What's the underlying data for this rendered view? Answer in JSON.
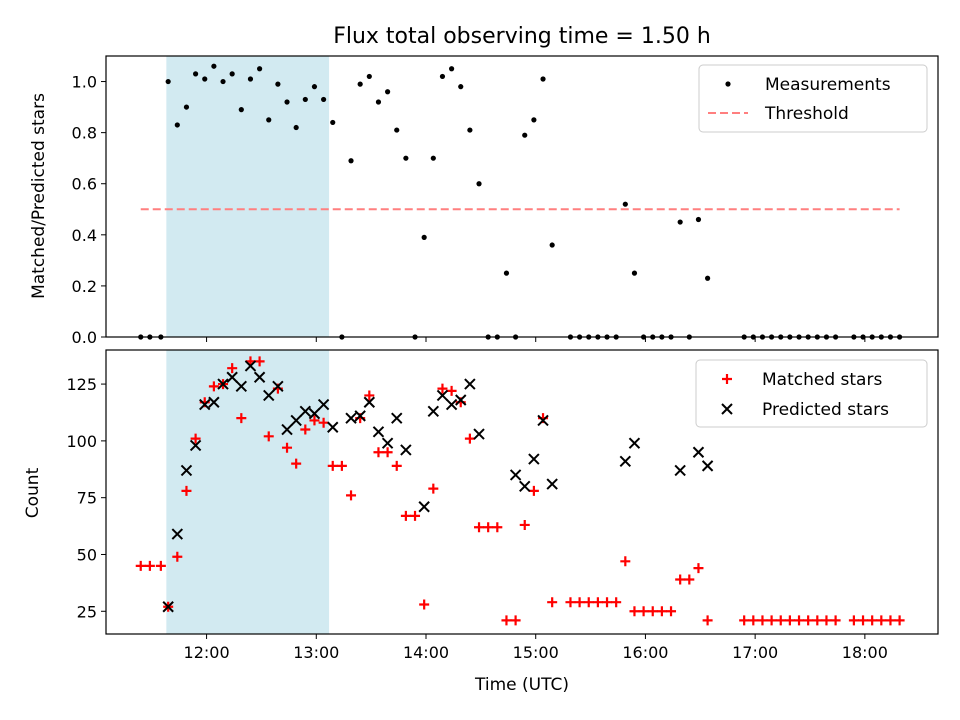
{
  "chart_data": [
    {
      "type": "scatter",
      "title": "Flux total observing time = 1.50 h",
      "xlabel": "",
      "ylabel": "Matched/Predicted stars",
      "xlim": [
        "11:05",
        "18:40"
      ],
      "ylim": [
        0,
        1.1
      ],
      "yticks": [
        0.0,
        0.2,
        0.4,
        0.6,
        0.8,
        1.0
      ],
      "ytick_labels": [
        "0.0",
        "0.2",
        "0.4",
        "0.6",
        "0.8",
        "1.0"
      ],
      "shaded_span": [
        "11:38",
        "13:07"
      ],
      "legend_position": "upper right",
      "series": [
        {
          "name": "Measurements",
          "marker": "dot",
          "color": "#000000",
          "points": [
            [
              "11:24",
              0.0
            ],
            [
              "11:29",
              0.0
            ],
            [
              "11:35",
              0.0
            ],
            [
              "11:39",
              1.0
            ],
            [
              "11:44",
              0.83
            ],
            [
              "11:49",
              0.9
            ],
            [
              "11:54",
              1.03
            ],
            [
              "11:59",
              1.01
            ],
            [
              "12:04",
              1.06
            ],
            [
              "12:09",
              1.0
            ],
            [
              "12:14",
              1.03
            ],
            [
              "12:19",
              0.89
            ],
            [
              "12:24",
              1.01
            ],
            [
              "12:29",
              1.05
            ],
            [
              "12:34",
              0.85
            ],
            [
              "12:39",
              0.99
            ],
            [
              "12:44",
              0.92
            ],
            [
              "12:49",
              0.82
            ],
            [
              "12:54",
              0.93
            ],
            [
              "12:59",
              0.98
            ],
            [
              "13:04",
              0.93
            ],
            [
              "13:09",
              0.84
            ],
            [
              "13:14",
              0.0
            ],
            [
              "13:19",
              0.69
            ],
            [
              "13:24",
              0.99
            ],
            [
              "13:29",
              1.02
            ],
            [
              "13:34",
              0.92
            ],
            [
              "13:39",
              0.96
            ],
            [
              "13:44",
              0.81
            ],
            [
              "13:49",
              0.7
            ],
            [
              "13:54",
              0.0
            ],
            [
              "13:59",
              0.39
            ],
            [
              "14:04",
              0.7
            ],
            [
              "14:09",
              1.02
            ],
            [
              "14:14",
              1.05
            ],
            [
              "14:19",
              0.98
            ],
            [
              "14:24",
              0.81
            ],
            [
              "14:29",
              0.6
            ],
            [
              "14:34",
              0.0
            ],
            [
              "14:39",
              0.0
            ],
            [
              "14:44",
              0.25
            ],
            [
              "14:49",
              0.0
            ],
            [
              "14:54",
              0.79
            ],
            [
              "14:59",
              0.85
            ],
            [
              "15:04",
              1.01
            ],
            [
              "15:09",
              0.36
            ],
            [
              "15:19",
              0.0
            ],
            [
              "15:24",
              0.0
            ],
            [
              "15:29",
              0.0
            ],
            [
              "15:34",
              0.0
            ],
            [
              "15:39",
              0.0
            ],
            [
              "15:44",
              0.0
            ],
            [
              "15:49",
              0.52
            ],
            [
              "15:54",
              0.25
            ],
            [
              "15:59",
              0.0
            ],
            [
              "16:04",
              0.0
            ],
            [
              "16:09",
              0.0
            ],
            [
              "16:14",
              0.0
            ],
            [
              "16:19",
              0.45
            ],
            [
              "16:24",
              0.0
            ],
            [
              "16:29",
              0.46
            ],
            [
              "16:34",
              0.23
            ],
            [
              "16:54",
              0.0
            ],
            [
              "16:59",
              0.0
            ],
            [
              "17:04",
              0.0
            ],
            [
              "17:09",
              0.0
            ],
            [
              "17:14",
              0.0
            ],
            [
              "17:19",
              0.0
            ],
            [
              "17:24",
              0.0
            ],
            [
              "17:29",
              0.0
            ],
            [
              "17:34",
              0.0
            ],
            [
              "17:39",
              0.0
            ],
            [
              "17:44",
              0.0
            ],
            [
              "17:54",
              0.0
            ],
            [
              "17:59",
              0.0
            ],
            [
              "18:04",
              0.0
            ],
            [
              "18:09",
              0.0
            ],
            [
              "18:14",
              0.0
            ],
            [
              "18:19",
              0.0
            ]
          ]
        },
        {
          "name": "Threshold",
          "line": "dashed",
          "color": "#ff7f7f",
          "points": [
            [
              "11:24",
              0.5
            ],
            [
              "18:19",
              0.5
            ]
          ]
        }
      ]
    },
    {
      "type": "scatter",
      "title": "",
      "xlabel": "Time (UTC)",
      "ylabel": "Count",
      "xlim": [
        "11:05",
        "18:40"
      ],
      "ylim": [
        15,
        140
      ],
      "xticks": [
        "12:00",
        "13:00",
        "14:00",
        "15:00",
        "16:00",
        "17:00",
        "18:00"
      ],
      "yticks": [
        25,
        50,
        75,
        100,
        125
      ],
      "ytick_labels": [
        "25",
        "50",
        "75",
        "100",
        "125"
      ],
      "shaded_span": [
        "11:38",
        "13:07"
      ],
      "legend_position": "upper right",
      "series": [
        {
          "name": "Matched stars",
          "marker": "plus",
          "color": "#ff0000",
          "points": [
            [
              "11:24",
              45
            ],
            [
              "11:29",
              45
            ],
            [
              "11:35",
              45
            ],
            [
              "11:39",
              27
            ],
            [
              "11:44",
              49
            ],
            [
              "11:49",
              78
            ],
            [
              "11:54",
              101
            ],
            [
              "11:59",
              117
            ],
            [
              "12:04",
              124
            ],
            [
              "12:09",
              125
            ],
            [
              "12:14",
              132
            ],
            [
              "12:19",
              110
            ],
            [
              "12:24",
              135
            ],
            [
              "12:29",
              135
            ],
            [
              "12:34",
              102
            ],
            [
              "12:39",
              123
            ],
            [
              "12:44",
              97
            ],
            [
              "12:49",
              90
            ],
            [
              "12:54",
              105
            ],
            [
              "12:59",
              109
            ],
            [
              "13:04",
              108
            ],
            [
              "13:09",
              89
            ],
            [
              "13:14",
              89
            ],
            [
              "13:19",
              76
            ],
            [
              "13:24",
              110
            ],
            [
              "13:29",
              120
            ],
            [
              "13:34",
              95
            ],
            [
              "13:39",
              95
            ],
            [
              "13:44",
              89
            ],
            [
              "13:49",
              67
            ],
            [
              "13:54",
              67
            ],
            [
              "13:59",
              28
            ],
            [
              "14:04",
              79
            ],
            [
              "14:09",
              123
            ],
            [
              "14:14",
              122
            ],
            [
              "14:19",
              117
            ],
            [
              "14:24",
              101
            ],
            [
              "14:29",
              62
            ],
            [
              "14:34",
              62
            ],
            [
              "14:39",
              62
            ],
            [
              "14:44",
              21
            ],
            [
              "14:49",
              21
            ],
            [
              "14:54",
              63
            ],
            [
              "14:59",
              78
            ],
            [
              "15:04",
              110
            ],
            [
              "15:09",
              29
            ],
            [
              "15:19",
              29
            ],
            [
              "15:24",
              29
            ],
            [
              "15:29",
              29
            ],
            [
              "15:34",
              29
            ],
            [
              "15:39",
              29
            ],
            [
              "15:44",
              29
            ],
            [
              "15:49",
              47
            ],
            [
              "15:54",
              25
            ],
            [
              "15:59",
              25
            ],
            [
              "16:04",
              25
            ],
            [
              "16:09",
              25
            ],
            [
              "16:14",
              25
            ],
            [
              "16:19",
              39
            ],
            [
              "16:24",
              39
            ],
            [
              "16:29",
              44
            ],
            [
              "16:34",
              21
            ],
            [
              "16:54",
              21
            ],
            [
              "16:59",
              21
            ],
            [
              "17:04",
              21
            ],
            [
              "17:09",
              21
            ],
            [
              "17:14",
              21
            ],
            [
              "17:19",
              21
            ],
            [
              "17:24",
              21
            ],
            [
              "17:29",
              21
            ],
            [
              "17:34",
              21
            ],
            [
              "17:39",
              21
            ],
            [
              "17:44",
              21
            ],
            [
              "17:54",
              21
            ],
            [
              "17:59",
              21
            ],
            [
              "18:04",
              21
            ],
            [
              "18:09",
              21
            ],
            [
              "18:14",
              21
            ],
            [
              "18:19",
              21
            ]
          ]
        },
        {
          "name": "Predicted stars",
          "marker": "x",
          "color": "#000000",
          "points": [
            [
              "11:39",
              27
            ],
            [
              "11:44",
              59
            ],
            [
              "11:49",
              87
            ],
            [
              "11:54",
              98
            ],
            [
              "11:59",
              116
            ],
            [
              "12:04",
              117
            ],
            [
              "12:09",
              125
            ],
            [
              "12:14",
              128
            ],
            [
              "12:19",
              124
            ],
            [
              "12:24",
              133
            ],
            [
              "12:29",
              128
            ],
            [
              "12:34",
              120
            ],
            [
              "12:39",
              124
            ],
            [
              "12:44",
              105
            ],
            [
              "12:49",
              109
            ],
            [
              "12:54",
              113
            ],
            [
              "12:59",
              112
            ],
            [
              "13:04",
              116
            ],
            [
              "13:09",
              106
            ],
            [
              "13:19",
              110
            ],
            [
              "13:24",
              111
            ],
            [
              "13:29",
              117
            ],
            [
              "13:34",
              104
            ],
            [
              "13:39",
              99
            ],
            [
              "13:44",
              110
            ],
            [
              "13:49",
              96
            ],
            [
              "13:59",
              71
            ],
            [
              "14:04",
              113
            ],
            [
              "14:09",
              120
            ],
            [
              "14:14",
              116
            ],
            [
              "14:19",
              118
            ],
            [
              "14:24",
              125
            ],
            [
              "14:29",
              103
            ],
            [
              "14:49",
              85
            ],
            [
              "14:54",
              80
            ],
            [
              "14:59",
              92
            ],
            [
              "15:04",
              109
            ],
            [
              "15:09",
              81
            ],
            [
              "15:49",
              91
            ],
            [
              "15:54",
              99
            ],
            [
              "16:19",
              87
            ],
            [
              "16:29",
              95
            ],
            [
              "16:34",
              89
            ]
          ]
        }
      ]
    }
  ]
}
